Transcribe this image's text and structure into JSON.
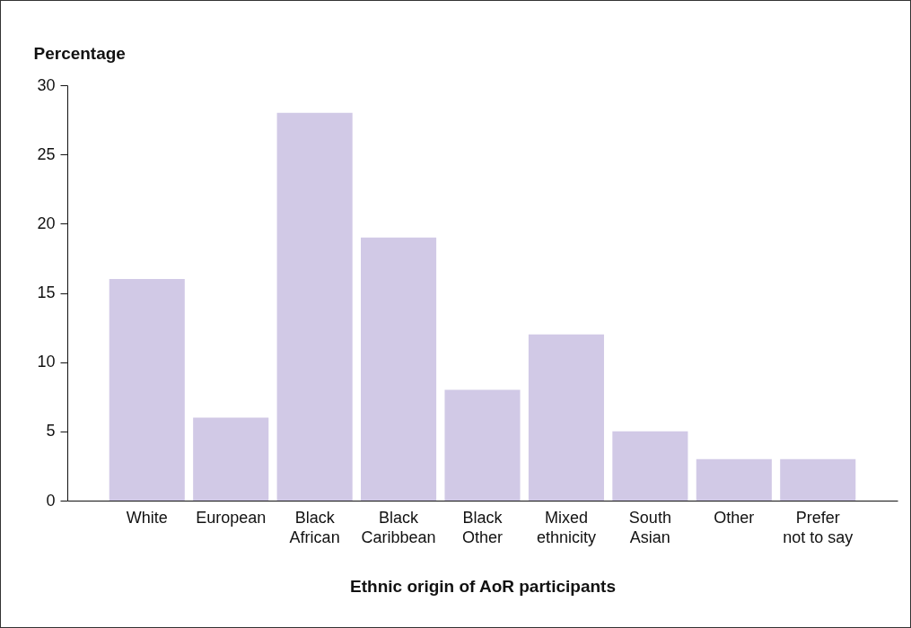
{
  "chart_data": {
    "type": "bar",
    "xlabel": "Ethnic origin of AoR participants",
    "ylabel": "Percentage",
    "categories": [
      "White",
      "European",
      "Black African",
      "Black Caribbean",
      "Black Other",
      "Mixed ethnicity",
      "South Asian",
      "Other",
      "Prefer not to say"
    ],
    "values": [
      16,
      6,
      28,
      19,
      8,
      12,
      5,
      3,
      3
    ],
    "color": "#d1c9e6",
    "ylim": [
      0,
      30
    ],
    "yticks": [
      0,
      5,
      10,
      15,
      20,
      25,
      30
    ],
    "grid": false
  }
}
